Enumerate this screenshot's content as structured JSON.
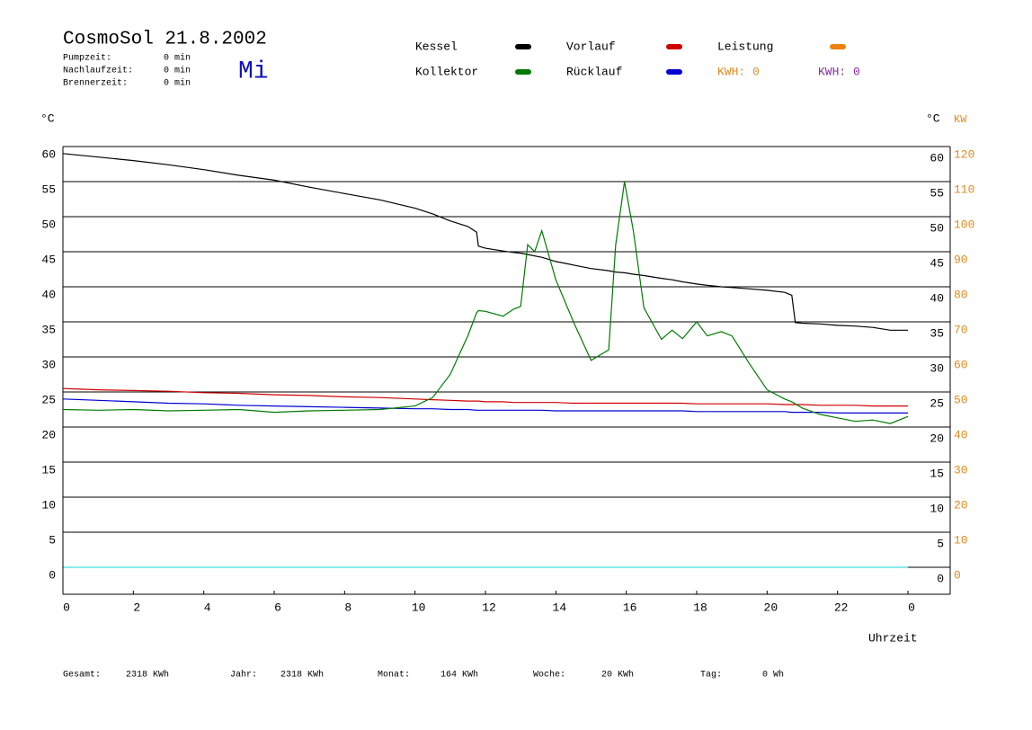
{
  "chart_data": {
    "type": "line",
    "title": "CosmoSol 21.8.2002",
    "day": "Mi",
    "stats": [
      {
        "label": "Pumpzeit:",
        "value": "0 min"
      },
      {
        "label": "Nachlaufzeit:",
        "value": "0 min"
      },
      {
        "label": "Brennerzeit:",
        "value": "0 min"
      }
    ],
    "kwh": [
      {
        "text": "KWH: 0",
        "color": "#e08a1e"
      },
      {
        "text": "KWH: 0",
        "color": "#8a2aa0"
      }
    ],
    "footer": [
      {
        "label": "Gesamt:",
        "value": "2318 KWh"
      },
      {
        "label": "Jahr:",
        "value": "2318 KWh"
      },
      {
        "label": "Monat:",
        "value": "164 KWh"
      },
      {
        "label": "Woche:",
        "value": "20 KWh"
      },
      {
        "label": "Tag:",
        "value": "0 Wh"
      }
    ],
    "ylabel": "°C",
    "y2label": "KW",
    "xlabel": "Uhrzeit",
    "xlim": [
      0,
      25.2
    ],
    "xticks": [
      0,
      2,
      4,
      6,
      8,
      10,
      12,
      14,
      16,
      18,
      20,
      22,
      {
        "value": 24,
        "label": "0"
      }
    ],
    "ylim": [
      -3.85,
      60
    ],
    "yticks": [
      0,
      5,
      10,
      15,
      20,
      25,
      30,
      35,
      40,
      45,
      50,
      55,
      60
    ],
    "y2lim": [
      -7.7,
      120
    ],
    "y2ticks": [
      0,
      10,
      20,
      30,
      40,
      50,
      60,
      70,
      80,
      90,
      100,
      110,
      120
    ],
    "grid": true,
    "x": [
      0,
      1,
      2,
      3,
      4,
      5,
      6,
      7,
      8,
      9,
      10,
      10.5,
      11,
      11.5,
      11.75,
      11.8,
      12,
      12.5,
      12.8,
      13,
      13.2,
      13.4,
      13.6,
      14,
      14.5,
      15,
      15.5,
      15.7,
      15.95,
      16.2,
      16.5,
      17,
      17.3,
      17.6,
      18,
      18.3,
      18.7,
      19,
      19.5,
      20,
      20.5,
      20.7,
      20.8,
      21,
      21.5,
      22,
      22.5,
      23,
      23.5,
      24
    ],
    "series": [
      {
        "name": "Kessel",
        "color": "#000000",
        "values": [
          59,
          58.5,
          58,
          57.4,
          56.7,
          55.9,
          55.2,
          54.2,
          53.3,
          52.4,
          51.2,
          50.4,
          49.4,
          48.6,
          47.8,
          45.8,
          45.5,
          45.1,
          44.9,
          44.8,
          44.6,
          44.4,
          44.2,
          43.6,
          43.1,
          42.6,
          42.3,
          42.1,
          42,
          41.8,
          41.6,
          41.2,
          41,
          40.7,
          40.4,
          40.2,
          40,
          39.9,
          39.7,
          39.5,
          39.2,
          38.8,
          34.9,
          34.8,
          34.7,
          34.5,
          34.4,
          34.2,
          33.8,
          33.8
        ]
      },
      {
        "name": "Kollektor",
        "color": "#007a00",
        "values": [
          22.5,
          22.4,
          22.5,
          22.3,
          22.4,
          22.5,
          22.1,
          22.3,
          22.4,
          22.5,
          23,
          24.2,
          27.5,
          33,
          36.3,
          36.6,
          36.5,
          35.8,
          36.8,
          37.2,
          46,
          45,
          48,
          41,
          35,
          29.5,
          31,
          46,
          55,
          48,
          37,
          32.5,
          33.8,
          32.6,
          35,
          33,
          33.6,
          33,
          29,
          25.3,
          24,
          23.6,
          23.3,
          22.7,
          21.8,
          21.3,
          20.8,
          21,
          20.5,
          21.5
        ]
      },
      {
        "name": "Vorlauf",
        "color": "#d00000",
        "values": [
          25.5,
          25.3,
          25.2,
          25.1,
          24.9,
          24.8,
          24.6,
          24.5,
          24.3,
          24.2,
          24,
          23.9,
          23.8,
          23.7,
          23.7,
          23.7,
          23.6,
          23.6,
          23.5,
          23.5,
          23.5,
          23.5,
          23.5,
          23.5,
          23.4,
          23.4,
          23.4,
          23.4,
          23.4,
          23.4,
          23.4,
          23.4,
          23.4,
          23.4,
          23.3,
          23.3,
          23.3,
          23.3,
          23.3,
          23.3,
          23.2,
          23.2,
          23.2,
          23.2,
          23.1,
          23.1,
          23.1,
          23,
          23,
          23
        ]
      },
      {
        "name": "Rücklauf",
        "color": "#0000d0",
        "values": [
          24,
          23.8,
          23.6,
          23.4,
          23.3,
          23.1,
          23,
          22.9,
          22.8,
          22.7,
          22.6,
          22.6,
          22.5,
          22.5,
          22.4,
          22.4,
          22.4,
          22.4,
          22.4,
          22.4,
          22.4,
          22.4,
          22.4,
          22.3,
          22.3,
          22.3,
          22.3,
          22.3,
          22.3,
          22.3,
          22.3,
          22.3,
          22.3,
          22.3,
          22.2,
          22.2,
          22.2,
          22.2,
          22.2,
          22.2,
          22.2,
          22.1,
          22.1,
          22.1,
          22.1,
          22,
          22,
          22,
          22,
          22
        ]
      },
      {
        "name": "Leistung",
        "color": "#f08010",
        "axis": "y2",
        "values": [
          null,
          null,
          null,
          null,
          null,
          null,
          null,
          null,
          null,
          null,
          null,
          null,
          null,
          null,
          null,
          null,
          null,
          null,
          null,
          null,
          null,
          null,
          null,
          null,
          null,
          null,
          null,
          null,
          null,
          null,
          null,
          null,
          null,
          null,
          null,
          null,
          null,
          null,
          null,
          null,
          null,
          null,
          null,
          null,
          null,
          null,
          null,
          null,
          null,
          null
        ]
      }
    ]
  }
}
